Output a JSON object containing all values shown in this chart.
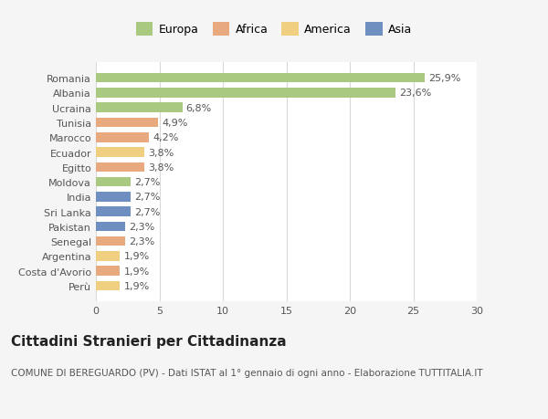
{
  "categories": [
    "Romania",
    "Albania",
    "Ucraina",
    "Tunisia",
    "Marocco",
    "Ecuador",
    "Egitto",
    "Moldova",
    "India",
    "Sri Lanka",
    "Pakistan",
    "Senegal",
    "Argentina",
    "Costa d'Avorio",
    "Perù"
  ],
  "values": [
    25.9,
    23.6,
    6.8,
    4.9,
    4.2,
    3.8,
    3.8,
    2.7,
    2.7,
    2.7,
    2.3,
    2.3,
    1.9,
    1.9,
    1.9
  ],
  "labels": [
    "25,9%",
    "23,6%",
    "6,8%",
    "4,9%",
    "4,2%",
    "3,8%",
    "3,8%",
    "2,7%",
    "2,7%",
    "2,7%",
    "2,3%",
    "2,3%",
    "1,9%",
    "1,9%",
    "1,9%"
  ],
  "colors": [
    "#a8c97f",
    "#a8c97f",
    "#a8c97f",
    "#e8a97e",
    "#e8a97e",
    "#f0d080",
    "#e8a97e",
    "#a8c97f",
    "#6e8fc0",
    "#6e8fc0",
    "#6e8fc0",
    "#e8a97e",
    "#f0d080",
    "#e8a97e",
    "#f0d080"
  ],
  "legend_labels": [
    "Europa",
    "Africa",
    "America",
    "Asia"
  ],
  "legend_colors": [
    "#a8c97f",
    "#e8a97e",
    "#f0d080",
    "#6e8fc0"
  ],
  "title": "Cittadini Stranieri per Cittadinanza",
  "subtitle": "COMUNE DI BEREGUARDO (PV) - Dati ISTAT al 1° gennaio di ogni anno - Elaborazione TUTTITALIA.IT",
  "xlim": [
    0,
    30
  ],
  "xticks": [
    0,
    5,
    10,
    15,
    20,
    25,
    30
  ],
  "background_color": "#f5f5f5",
  "bar_background": "#ffffff",
  "grid_color": "#d8d8d8",
  "title_fontsize": 11,
  "subtitle_fontsize": 7.5,
  "label_fontsize": 8,
  "tick_fontsize": 8,
  "legend_fontsize": 9
}
